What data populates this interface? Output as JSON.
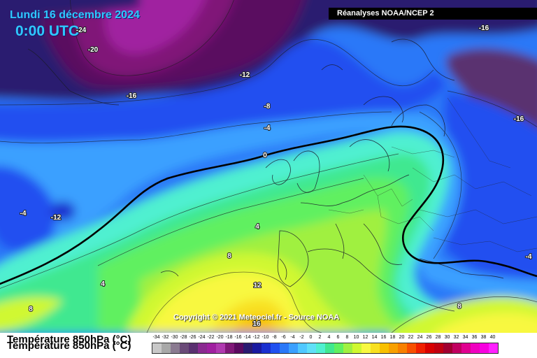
{
  "header": {
    "date": "Lundi 16 décembre 2024",
    "time": "0:00 UTC",
    "source": "Réanalyses NOAA/NCEP 2"
  },
  "copyright": "Copyright © 2021 Meteociel.fr - Source NOAA",
  "legend": {
    "title": "Température 850hPa (°C)",
    "values": [
      "-34",
      "-32",
      "-30",
      "-28",
      "-26",
      "-24",
      "-22",
      "-20",
      "-18",
      "-16",
      "-14",
      "-12",
      "-10",
      "-8",
      "-6",
      "-4",
      "-2",
      "0",
      "2",
      "4",
      "6",
      "8",
      "10",
      "12",
      "14",
      "16",
      "18",
      "20",
      "22",
      "24",
      "26",
      "28",
      "30",
      "32",
      "34",
      "36",
      "38",
      "40"
    ],
    "colors": [
      "#c8c8c8",
      "#a8a8a8",
      "#8a7a90",
      "#6a4a78",
      "#5a3070",
      "#8a2a90",
      "#a020a0",
      "#b03ab0",
      "#801878",
      "#5a0a60",
      "#2a1a70",
      "#1a1aa0",
      "#1a30d0",
      "#2050f0",
      "#2a78f8",
      "#3aa0ff",
      "#50c8ff",
      "#60e0f8",
      "#50f0d0",
      "#40e890",
      "#60f060",
      "#a0f040",
      "#d0f830",
      "#f8f840",
      "#f8e020",
      "#f8c000",
      "#f8a000",
      "#f88000",
      "#f85000",
      "#f02000",
      "#d80000",
      "#c00010",
      "#a00030",
      "#c00060",
      "#e00090",
      "#f000c0",
      "#f800e0",
      "#ff20ff"
    ]
  },
  "map_labels": [
    "-24",
    "-20",
    "-16",
    "-12",
    "-8",
    "-4",
    "0",
    "-16",
    "-16",
    "-4",
    "-12",
    "4",
    "8",
    "4",
    "12",
    "8",
    "-4",
    "8",
    "16"
  ],
  "contours": {
    "zero_isotherm": "0"
  }
}
